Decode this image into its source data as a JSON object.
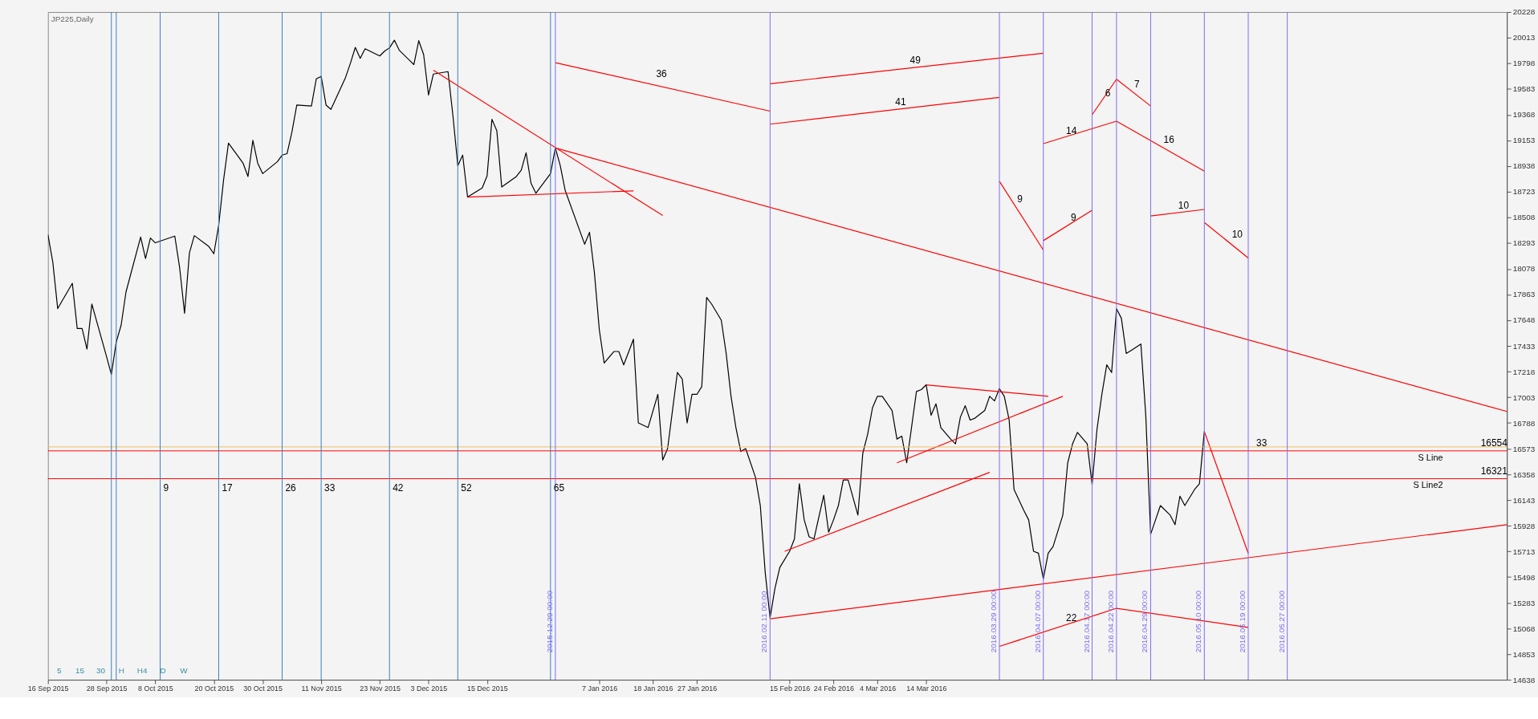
{
  "chart_data": {
    "type": "line",
    "xlim": [
      "2015-09-16",
      "2016-07-11"
    ],
    "ylim": [
      14638,
      20228
    ],
    "xticks": [
      {
        "value": "2015-09-16",
        "label": "16 Sep 2015"
      },
      {
        "value": "2015-09-28",
        "label": "28 Sep 2015"
      },
      {
        "value": "2015-10-08",
        "label": "8 Oct 2015"
      },
      {
        "value": "2015-10-20",
        "label": "20 Oct 2015"
      },
      {
        "value": "2015-10-30",
        "label": "30 Oct 2015"
      },
      {
        "value": "2015-11-11",
        "label": "11 Nov 2015"
      },
      {
        "value": "2015-11-23",
        "label": "23 Nov 2015"
      },
      {
        "value": "2015-12-03",
        "label": "3 Dec 2015"
      },
      {
        "value": "2015-12-15",
        "label": "15 Dec 2015"
      },
      {
        "value": "2016-01-07",
        "label": "7 Jan 2016"
      },
      {
        "value": "2016-01-18",
        "label": "18 Jan 2016"
      },
      {
        "value": "2016-01-27",
        "label": "27 Jan 2016"
      },
      {
        "value": "2016-02-15",
        "label": "15 Feb 2016"
      },
      {
        "value": "2016-02-24",
        "label": "24 Feb 2016"
      },
      {
        "value": "2016-03-04",
        "label": "4 Mar 2016"
      },
      {
        "value": "2016-03-14",
        "label": "14 Mar 2016"
      }
    ],
    "yticks": [
      14638,
      14853,
      15068,
      15283,
      15498,
      15713,
      15928,
      16143,
      16358,
      16573,
      16788,
      17003,
      17218,
      17433,
      17648,
      17863,
      18078,
      18293,
      18508,
      18723,
      18938,
      19153,
      19368,
      19583,
      19798,
      20013,
      20228
    ],
    "grid": false,
    "line_style": "solid",
    "series": [
      {
        "color": "#000000",
        "x": [
          "2015-09-16",
          "2015-09-17",
          "2015-09-18",
          "2015-09-21",
          "2015-09-22",
          "2015-09-23",
          "2015-09-24",
          "2015-09-25",
          "2015-09-28",
          "2015-09-29",
          "2015-09-30",
          "2015-10-01",
          "2015-10-02",
          "2015-10-05",
          "2015-10-06",
          "2015-10-07",
          "2015-10-08",
          "2015-10-12",
          "2015-10-13",
          "2015-10-14",
          "2015-10-15",
          "2015-10-16",
          "2015-10-19",
          "2015-10-20",
          "2015-10-21",
          "2015-10-22",
          "2015-10-23",
          "2015-10-26",
          "2015-10-27",
          "2015-10-28",
          "2015-10-29",
          "2015-10-30",
          "2015-11-02",
          "2015-11-03",
          "2015-11-04",
          "2015-11-05",
          "2015-11-06",
          "2015-11-09",
          "2015-11-10",
          "2015-11-11",
          "2015-11-12",
          "2015-11-13",
          "2015-11-16",
          "2015-11-17",
          "2015-11-18",
          "2015-11-19",
          "2015-11-20",
          "2015-11-23",
          "2015-11-24",
          "2015-11-25",
          "2015-11-26",
          "2015-11-27",
          "2015-11-30",
          "2015-12-01",
          "2015-12-02",
          "2015-12-03",
          "2015-12-04",
          "2015-12-07",
          "2015-12-08",
          "2015-12-09",
          "2015-12-10",
          "2015-12-11",
          "2015-12-14",
          "2015-12-15",
          "2015-12-16",
          "2015-12-17",
          "2015-12-18",
          "2015-12-21",
          "2015-12-22",
          "2015-12-23",
          "2015-12-24",
          "2015-12-25",
          "2015-12-28",
          "2015-12-29",
          "2015-12-30",
          "2015-12-31",
          "2016-01-04",
          "2016-01-05",
          "2016-01-06",
          "2016-01-07",
          "2016-01-08",
          "2016-01-10",
          "2016-01-11",
          "2016-01-12",
          "2016-01-14",
          "2016-01-15",
          "2016-01-17",
          "2016-01-19",
          "2016-01-20",
          "2016-01-21",
          "2016-01-23",
          "2016-01-24",
          "2016-01-25",
          "2016-01-26",
          "2016-01-27",
          "2016-01-28",
          "2016-01-29",
          "2016-01-30",
          "2016-02-01",
          "2016-02-02",
          "2016-02-03",
          "2016-02-04",
          "2016-02-05",
          "2016-02-06",
          "2016-02-08",
          "2016-02-09",
          "2016-02-10",
          "2016-02-11",
          "2016-02-12",
          "2016-02-13",
          "2016-02-15",
          "2016-02-16",
          "2016-02-17",
          "2016-02-18",
          "2016-02-19",
          "2016-02-20",
          "2016-02-22",
          "2016-02-23",
          "2016-02-24",
          "2016-02-25",
          "2016-02-26",
          "2016-02-27",
          "2016-02-29",
          "2016-03-01",
          "2016-03-02",
          "2016-03-03",
          "2016-03-04",
          "2016-03-05",
          "2016-03-07",
          "2016-03-08",
          "2016-03-09",
          "2016-03-10",
          "2016-03-12",
          "2016-03-13",
          "2016-03-14",
          "2016-03-15",
          "2016-03-16",
          "2016-03-17",
          "2016-03-19",
          "2016-03-20",
          "2016-03-21",
          "2016-03-22",
          "2016-03-23",
          "2016-03-24",
          "2016-03-26",
          "2016-03-27",
          "2016-03-28",
          "2016-03-29",
          "2016-03-30",
          "2016-03-31",
          "2016-04-01",
          "2016-04-03",
          "2016-04-04",
          "2016-04-05",
          "2016-04-06",
          "2016-04-07",
          "2016-04-08",
          "2016-04-09",
          "2016-04-11",
          "2016-04-12",
          "2016-04-13",
          "2016-04-14",
          "2016-04-16",
          "2016-04-17",
          "2016-04-18",
          "2016-04-19",
          "2016-04-20",
          "2016-04-21",
          "2016-04-22",
          "2016-04-23",
          "2016-04-24",
          "2016-04-25",
          "2016-04-27",
          "2016-04-28",
          "2016-04-29",
          "2016-04-30",
          "2016-05-01",
          "2016-05-03",
          "2016-05-04",
          "2016-05-05",
          "2016-05-06",
          "2016-05-08",
          "2016-05-09",
          "2016-05-10"
        ],
        "values": [
          18364,
          18133,
          17745,
          17957,
          17578,
          17578,
          17406,
          17783,
          17345,
          17194,
          17466,
          17606,
          17885,
          18344,
          18164,
          18336,
          18296,
          18352,
          18085,
          17706,
          18212,
          18356,
          18264,
          18204,
          18444,
          18823,
          19130,
          18962,
          18851,
          19154,
          18962,
          18875,
          18974,
          19030,
          19042,
          19222,
          19449,
          19441,
          19669,
          19689,
          19449,
          19413,
          19681,
          19800,
          19932,
          19840,
          19920,
          19860,
          19900,
          19928,
          19992,
          19908,
          19788,
          19988,
          19872,
          19533,
          19709,
          19729,
          19361,
          18942,
          19030,
          18679,
          18755,
          18855,
          19330,
          19234,
          18763,
          18851,
          18903,
          19050,
          18795,
          18711,
          18875,
          19090,
          18942,
          18735,
          18284,
          18384,
          18045,
          17569,
          17290,
          17386,
          17386,
          17274,
          17489,
          16788,
          16749,
          17027,
          16478,
          16573,
          17210,
          17155,
          16788,
          17027,
          17027,
          17091,
          17839,
          17784,
          17648,
          17370,
          17011,
          16749,
          16549,
          16573,
          16334,
          16096,
          15538,
          15156,
          15403,
          15578,
          15713,
          15817,
          16279,
          15976,
          15834,
          15817,
          16183,
          15873,
          15976,
          16096,
          16310,
          16310,
          16016,
          16533,
          16693,
          16916,
          17011,
          17011,
          16892,
          16653,
          16677,
          16454,
          17051,
          17067,
          17107,
          16852,
          16948,
          16749,
          16653,
          16613,
          16836,
          16932,
          16812,
          16828,
          16892,
          17011,
          16972,
          17075,
          17011,
          16812,
          16231,
          16056,
          15976,
          15713,
          15697,
          15483,
          15697,
          15753,
          16016,
          16454,
          16613,
          16709,
          16613,
          16271,
          16733,
          17027,
          17274,
          17210,
          17744,
          17664,
          17370,
          17394,
          17449,
          16852,
          15857,
          15976,
          16096,
          16016,
          15936,
          16175,
          16096,
          16231,
          16279,
          16717
        ]
      },
      {
        "color": "#ff0000",
        "x": [
          "2015-12-29",
          "2016-02-11"
        ],
        "values": [
          19804,
          19398
        ]
      },
      {
        "color": "#ff0000",
        "x": [
          "2016-02-11",
          "2016-04-07"
        ],
        "values": [
          19628,
          19883
        ]
      },
      {
        "color": "#ff0000",
        "x": [
          "2016-02-11",
          "2016-03-29"
        ],
        "values": [
          19289,
          19513
        ]
      },
      {
        "color": "#ff0000",
        "x": [
          "2016-04-07",
          "2016-04-22"
        ],
        "values": [
          19126,
          19314
        ]
      },
      {
        "color": "#ff0000",
        "x": [
          "2016-04-17",
          "2016-04-22",
          "2016-04-29"
        ],
        "values": [
          19368,
          19665,
          19441
        ]
      },
      {
        "color": "#ff0000",
        "x": [
          "2016-04-22",
          "2016-05-10"
        ],
        "values": [
          19314,
          18896
        ]
      },
      {
        "color": "#ff0000",
        "x": [
          "2016-03-29",
          "2016-04-07"
        ],
        "values": [
          18811,
          18236
        ]
      },
      {
        "color": "#ff0000",
        "x": [
          "2016-04-07",
          "2016-04-17"
        ],
        "values": [
          18314,
          18569
        ]
      },
      {
        "color": "#ff0000",
        "x": [
          "2016-04-29",
          "2016-05-10"
        ],
        "values": [
          18520,
          18575
        ]
      },
      {
        "color": "#ff0000",
        "x": [
          "2016-05-10",
          "2016-05-19"
        ],
        "values": [
          18466,
          18169
        ]
      },
      {
        "color": "#ff0000",
        "x": [
          "2015-12-29",
          "2016-07-11"
        ],
        "values": [
          19090,
          16884
        ]
      },
      {
        "color": "#ff0000",
        "x": [
          "2015-12-04",
          "2016-01-20"
        ],
        "values": [
          19740,
          18524
        ]
      },
      {
        "color": "#ff0000",
        "x": [
          "2015-12-11",
          "2016-01-14"
        ],
        "values": [
          18679,
          18731
        ]
      },
      {
        "color": "#ff0000",
        "x": [
          "2016-02-11",
          "2016-07-11"
        ],
        "values": [
          15148,
          15936
        ]
      },
      {
        "color": "#ff0000",
        "x": [
          "2016-02-14",
          "2016-03-27"
        ],
        "values": [
          15713,
          16374
        ]
      },
      {
        "color": "#ff0000",
        "x": [
          "2016-03-08",
          "2016-04-11"
        ],
        "values": [
          16454,
          17011
        ]
      },
      {
        "color": "#ff0000",
        "x": [
          "2016-03-14",
          "2016-04-08"
        ],
        "values": [
          17107,
          17011
        ]
      },
      {
        "color": "#ff0000",
        "x": [
          "2016-03-29",
          "2016-04-22",
          "2016-05-19"
        ],
        "values": [
          14917,
          15236,
          15076
        ]
      },
      {
        "color": "#ff0000",
        "x": [
          "2016-05-10",
          "2016-05-19"
        ],
        "values": [
          16717,
          15697
        ]
      }
    ],
    "ref_lines": [
      {
        "axis": "y",
        "value": 16587,
        "label": null,
        "color": "#f0c060"
      },
      {
        "axis": "y",
        "value": 16554,
        "label": "S Line",
        "color": "#ff0000"
      },
      {
        "axis": "y",
        "value": 16321,
        "label": "S Line2",
        "color": "#ff0000"
      },
      {
        "axis": "x",
        "value": "2015-09-29",
        "label": null,
        "color": "#3a7fc1"
      },
      {
        "axis": "x",
        "value": "2015-09-30",
        "label": null,
        "color": "#3a7fc1"
      },
      {
        "axis": "x",
        "value": "2015-10-09",
        "label": null,
        "color": "#3a7fc1"
      },
      {
        "axis": "x",
        "value": "2015-10-21",
        "label": null,
        "color": "#3a7fc1"
      },
      {
        "axis": "x",
        "value": "2015-11-03",
        "label": null,
        "color": "#3a7fc1"
      },
      {
        "axis": "x",
        "value": "2015-11-11",
        "label": null,
        "color": "#3a7fc1"
      },
      {
        "axis": "x",
        "value": "2015-11-25",
        "label": null,
        "color": "#3a7fc1"
      },
      {
        "axis": "x",
        "value": "2015-12-09",
        "label": null,
        "color": "#3a7fc1"
      },
      {
        "axis": "x",
        "value": "2015-12-28",
        "label": null,
        "color": "#3a7fc1"
      },
      {
        "axis": "x",
        "value": "2015-12-29",
        "label": "2015.12.29 00:00",
        "color": "#7b6cf0"
      },
      {
        "axis": "x",
        "value": "2016-02-11",
        "label": "2016.02.11 00:00",
        "color": "#7b6cf0"
      },
      {
        "axis": "x",
        "value": "2016-03-29",
        "label": "2016.03.29 00:00",
        "color": "#7b6cf0"
      },
      {
        "axis": "x",
        "value": "2016-04-07",
        "label": "2016.04.07 00:00",
        "color": "#7b6cf0"
      },
      {
        "axis": "x",
        "value": "2016-04-17",
        "label": "2016.04.17 00:00",
        "color": "#7b6cf0"
      },
      {
        "axis": "x",
        "value": "2016-04-22",
        "label": "2016.04.22 00:00",
        "color": "#7b6cf0"
      },
      {
        "axis": "x",
        "value": "2016-04-29",
        "label": "2016.04.29 00:00",
        "color": "#7b6cf0"
      },
      {
        "axis": "x",
        "value": "2016-05-10",
        "label": "2016.05.10 00:00",
        "color": "#7b6cf0"
      },
      {
        "axis": "x",
        "value": "2016-05-19",
        "label": "2016.05.19 00:00",
        "color": "#7b6cf0"
      },
      {
        "axis": "x",
        "value": "2016-05-27",
        "label": "2016.05.27 00:00",
        "color": "#7b6cf0"
      }
    ],
    "annotations": [
      "JP225,Daily",
      "5",
      "15",
      "30",
      "H",
      "H4",
      "D",
      "W",
      {
        "text": "9",
        "x": "2015-10-09",
        "y": 16180
      },
      {
        "text": "17",
        "x": "2015-10-21",
        "y": 16180
      },
      {
        "text": "26",
        "x": "2015-11-03",
        "y": 16180
      },
      {
        "text": "33",
        "x": "2015-11-11",
        "y": 16180
      },
      {
        "text": "42",
        "x": "2015-11-25",
        "y": 16180
      },
      {
        "text": "52",
        "x": "2015-12-09",
        "y": 16180
      },
      {
        "text": "65",
        "x": "2015-12-28",
        "y": 16180
      },
      {
        "text": "36",
        "x": "2016-01-18",
        "y": 19643
      },
      {
        "text": "49",
        "x": "2016-03-10",
        "y": 19756
      },
      {
        "text": "41",
        "x": "2016-03-07",
        "y": 19407
      },
      {
        "text": "14",
        "x": "2016-04-11",
        "y": 19169
      },
      {
        "text": "6",
        "x": "2016-04-19",
        "y": 19483
      },
      {
        "text": "7",
        "x": "2016-04-25",
        "y": 19553
      },
      {
        "text": "16",
        "x": "2016-05-01",
        "y": 19091
      },
      {
        "text": "9",
        "x": "2016-04-01",
        "y": 18595
      },
      {
        "text": "9",
        "x": "2016-04-12",
        "y": 18440
      },
      {
        "text": "10",
        "x": "2016-05-04",
        "y": 18544
      },
      {
        "text": "10",
        "x": "2016-05-15",
        "y": 18301
      },
      {
        "text": "22",
        "x": "2016-04-11",
        "y": 15086
      },
      {
        "text": "33",
        "x": "2016-05-20",
        "y": 16554
      },
      {
        "text": "16554",
        "x": "2016-07-05",
        "y": 16554
      },
      {
        "text": "16321",
        "x": "2016-07-05",
        "y": 16321
      }
    ]
  }
}
